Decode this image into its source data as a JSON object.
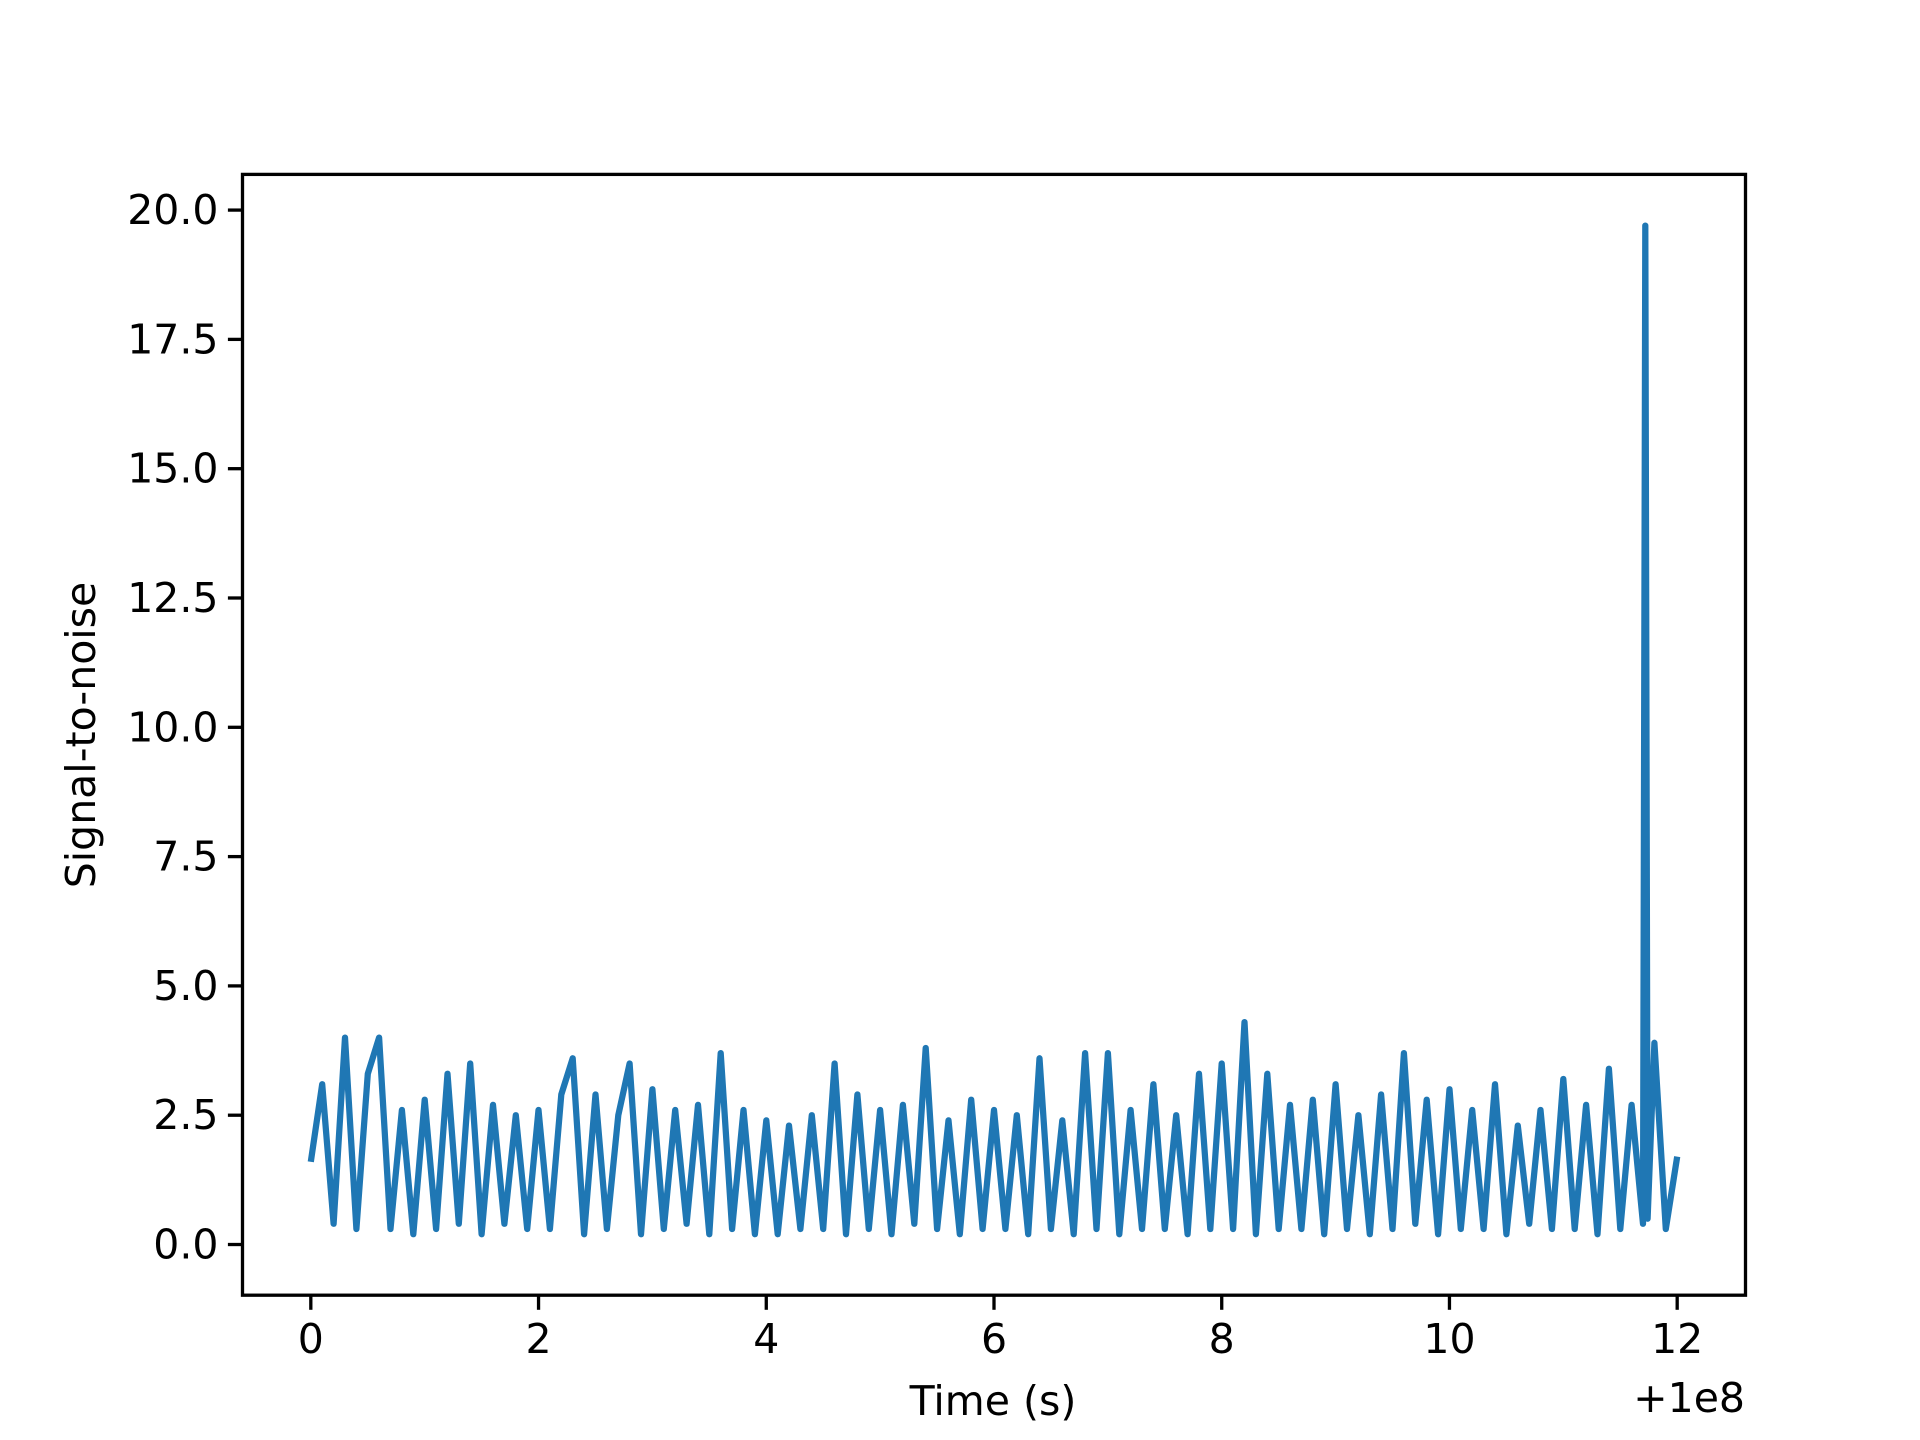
{
  "chart_data": {
    "type": "line",
    "xlabel": "Time (s)",
    "ylabel": "Signal-to-noise",
    "x_offset_label": "+1e8",
    "x": [
      0.0,
      0.1,
      0.2,
      0.3,
      0.4,
      0.5,
      0.6,
      0.7,
      0.8,
      0.9,
      1.0,
      1.1,
      1.2,
      1.3,
      1.4,
      1.5,
      1.6,
      1.7,
      1.8,
      1.9,
      2.0,
      2.1,
      2.2,
      2.3,
      2.4,
      2.5,
      2.6,
      2.7,
      2.8,
      2.9,
      3.0,
      3.1,
      3.2,
      3.3,
      3.4,
      3.5,
      3.6,
      3.7,
      3.8,
      3.9,
      4.0,
      4.1,
      4.2,
      4.3,
      4.4,
      4.5,
      4.6,
      4.7,
      4.8,
      4.9,
      5.0,
      5.1,
      5.2,
      5.3,
      5.4,
      5.5,
      5.6,
      5.7,
      5.8,
      5.9,
      6.0,
      6.1,
      6.2,
      6.3,
      6.4,
      6.5,
      6.6,
      6.7,
      6.8,
      6.9,
      7.0,
      7.1,
      7.2,
      7.3,
      7.4,
      7.5,
      7.6,
      7.7,
      7.8,
      7.9,
      8.0,
      8.1,
      8.2,
      8.3,
      8.4,
      8.5,
      8.6,
      8.7,
      8.8,
      8.9,
      9.0,
      9.1,
      9.2,
      9.3,
      9.4,
      9.5,
      9.6,
      9.7,
      9.8,
      9.9,
      10.0,
      10.1,
      10.2,
      10.3,
      10.4,
      10.5,
      10.6,
      10.7,
      10.8,
      10.9,
      11.0,
      11.1,
      11.2,
      11.3,
      11.4,
      11.5,
      11.6,
      11.7,
      11.72,
      11.74,
      11.8,
      11.9,
      12.0
    ],
    "series": [
      {
        "name": "Signal-to-noise",
        "color": "#1f77b4",
        "values": [
          1.6,
          3.1,
          0.4,
          4.0,
          0.3,
          3.3,
          4.0,
          0.3,
          2.6,
          0.2,
          2.8,
          0.3,
          3.3,
          0.4,
          3.5,
          0.2,
          2.7,
          0.4,
          2.5,
          0.3,
          2.6,
          0.3,
          2.9,
          3.6,
          0.2,
          2.9,
          0.3,
          2.5,
          3.5,
          0.2,
          3.0,
          0.3,
          2.6,
          0.4,
          2.7,
          0.2,
          3.7,
          0.3,
          2.6,
          0.2,
          2.4,
          0.2,
          2.3,
          0.3,
          2.5,
          0.3,
          3.5,
          0.2,
          2.9,
          0.3,
          2.6,
          0.2,
          2.7,
          0.4,
          3.8,
          0.3,
          2.4,
          0.2,
          2.8,
          0.3,
          2.6,
          0.3,
          2.5,
          0.2,
          3.6,
          0.3,
          2.4,
          0.2,
          3.7,
          0.3,
          3.7,
          0.2,
          2.6,
          0.3,
          3.1,
          0.3,
          2.5,
          0.2,
          3.3,
          0.3,
          3.5,
          0.3,
          4.3,
          0.2,
          3.3,
          0.3,
          2.7,
          0.3,
          2.8,
          0.2,
          3.1,
          0.3,
          2.5,
          0.2,
          2.9,
          0.3,
          3.7,
          0.4,
          2.8,
          0.2,
          3.0,
          0.3,
          2.6,
          0.3,
          3.1,
          0.2,
          2.3,
          0.4,
          2.6,
          0.3,
          3.2,
          0.3,
          2.7,
          0.2,
          3.4,
          0.3,
          2.7,
          0.4,
          19.7,
          0.5,
          3.9,
          0.3,
          1.7
        ]
      }
    ],
    "xlim": [
      -0.6,
      12.6
    ],
    "ylim": [
      -0.98,
      20.69
    ],
    "xticks": [
      0,
      2,
      4,
      6,
      8,
      10,
      12
    ],
    "yticks": [
      {
        "value": 0,
        "label": "0.0"
      },
      2.5,
      {
        "value": 5,
        "label": "5.0"
      },
      7.5,
      {
        "value": 10,
        "label": "10.0"
      },
      12.5,
      {
        "value": 15,
        "label": "15.0"
      },
      17.5,
      {
        "value": 20,
        "label": "20.0"
      }
    ],
    "grid": false
  }
}
